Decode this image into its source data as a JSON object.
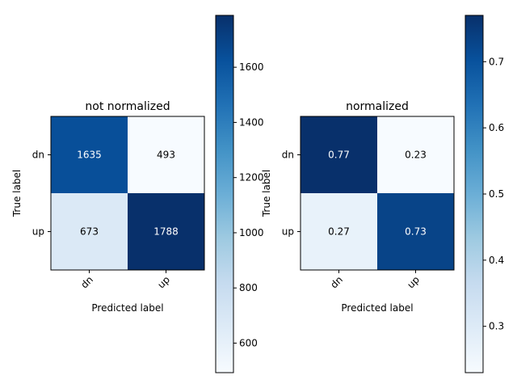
{
  "chart_data": [
    {
      "type": "heatmap",
      "title": "not normalized",
      "xlabel": "Predicted label",
      "ylabel": "True label",
      "x_categories": [
        "dn",
        "up"
      ],
      "y_categories": [
        "dn",
        "up"
      ],
      "values": [
        [
          1635,
          493
        ],
        [
          673,
          1788
        ]
      ],
      "cell_labels": [
        [
          "1635",
          "493"
        ],
        [
          "673",
          "1788"
        ]
      ],
      "colormap": "Blues",
      "colorbar": {
        "range": [
          493,
          1788
        ],
        "ticks": [
          600,
          800,
          1000,
          1200,
          1400,
          1600
        ],
        "tick_labels": [
          "600",
          "800",
          "1000",
          "1200",
          "1400",
          "1600"
        ]
      }
    },
    {
      "type": "heatmap",
      "title": "normalized",
      "xlabel": "Predicted label",
      "ylabel": "True label",
      "x_categories": [
        "dn",
        "up"
      ],
      "y_categories": [
        "dn",
        "up"
      ],
      "values": [
        [
          0.77,
          0.23
        ],
        [
          0.27,
          0.73
        ]
      ],
      "cell_labels": [
        [
          "0.77",
          "0.23"
        ],
        [
          "0.27",
          "0.73"
        ]
      ],
      "colormap": "Blues",
      "colorbar": {
        "range": [
          0.23,
          0.77
        ],
        "ticks": [
          0.3,
          0.4,
          0.5,
          0.6,
          0.7
        ],
        "tick_labels": [
          "0.3",
          "0.4",
          "0.5",
          "0.6",
          "0.7"
        ]
      }
    }
  ]
}
